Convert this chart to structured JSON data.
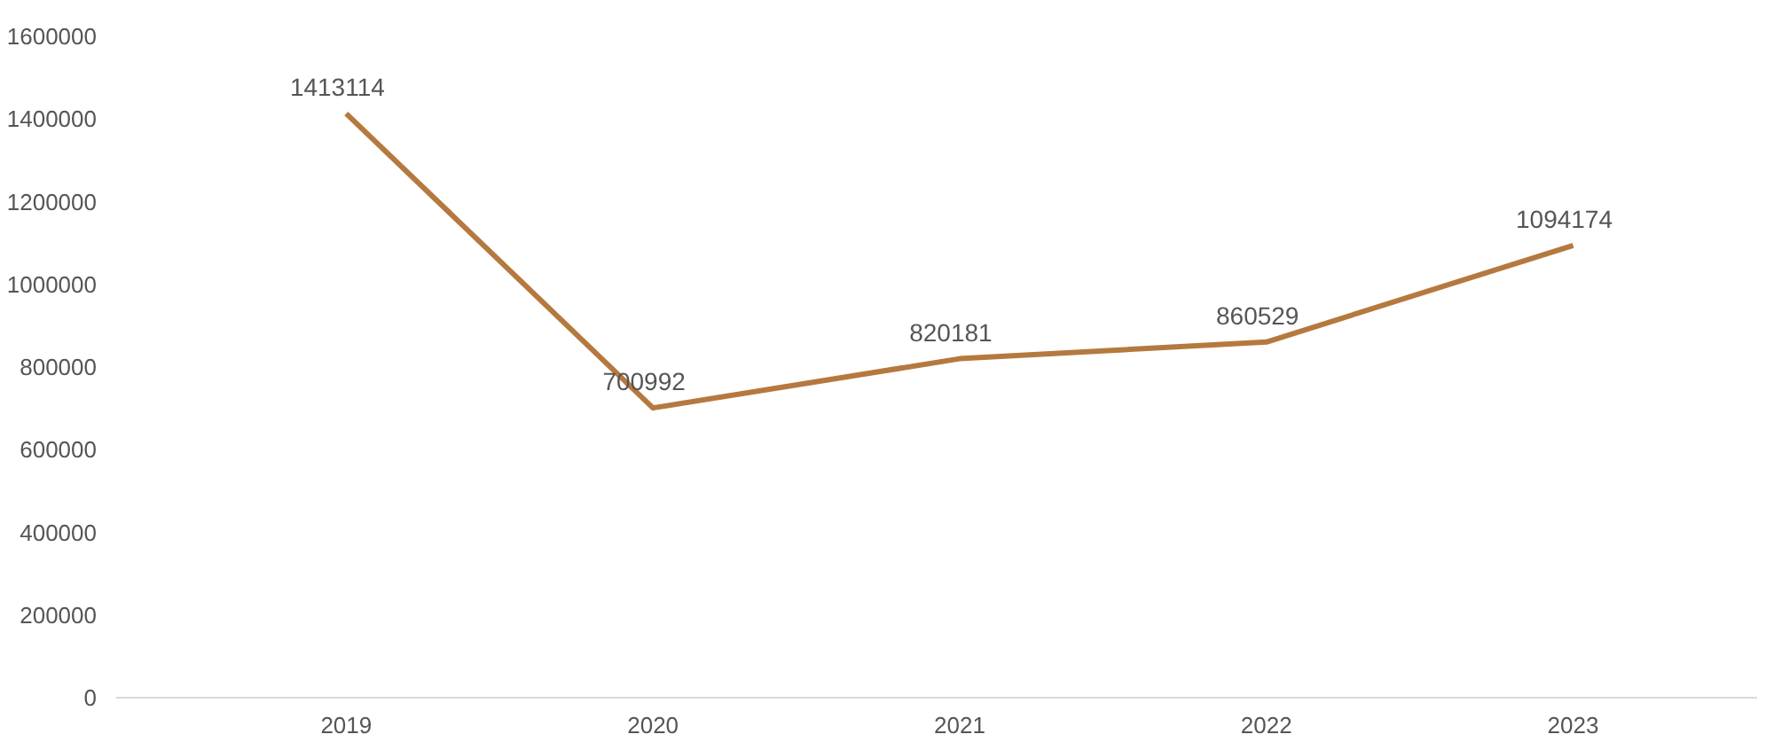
{
  "chart_data": {
    "type": "line",
    "categories": [
      "2019",
      "2020",
      "2021",
      "2022",
      "2023"
    ],
    "values": [
      1413114,
      700992,
      820181,
      860529,
      1094174
    ],
    "color": "#b5793f",
    "ylim": [
      0,
      1600000
    ],
    "yticks": [
      0,
      200000,
      400000,
      600000,
      800000,
      1000000,
      1200000,
      1400000,
      1600000
    ],
    "data_labels": true
  }
}
